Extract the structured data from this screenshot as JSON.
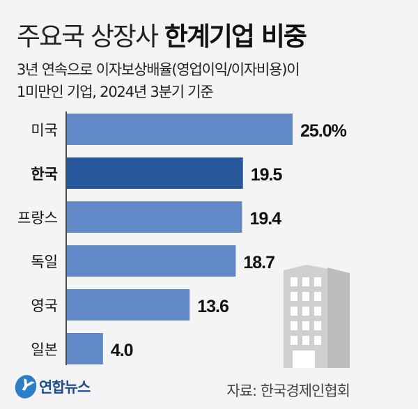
{
  "title": {
    "light": "주요국 상장사",
    "bold": "한계기업 비중"
  },
  "subtitle": [
    "3년 연속으로 이자보상배율(영업이익/이자비용)이",
    "1미만인 기업, 2024년 3분기 기준"
  ],
  "chart_data": {
    "type": "bar",
    "orientation": "horizontal",
    "categories": [
      "미국",
      "한국",
      "프랑스",
      "독일",
      "영국",
      "일본"
    ],
    "values": [
      25.0,
      19.5,
      19.4,
      18.7,
      13.6,
      4.0
    ],
    "data_labels": [
      "25.0%",
      "19.5",
      "19.4",
      "18.7",
      "13.6",
      "4.0"
    ],
    "unit": "%",
    "highlight": "한국",
    "colors": {
      "default": "#6189c8",
      "highlight": "#27579b"
    },
    "xlim": [
      0,
      25
    ],
    "grid": false
  },
  "logo": "연합뉴스",
  "source": "자료: 한국경제인협회"
}
